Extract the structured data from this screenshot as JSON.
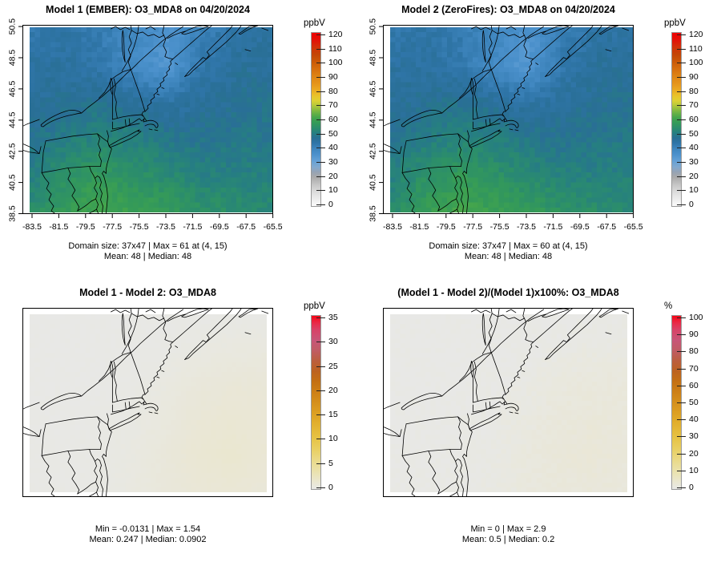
{
  "figure": {
    "background": "#ffffff",
    "text_color": "#000000",
    "description_units": [
      "ppbV",
      "%"
    ]
  },
  "grid": {
    "cols": 47,
    "rows": 37
  },
  "palettes": {
    "conc": [
      [
        0.0,
        "#fbfbfb"
      ],
      [
        0.042,
        "#ececec"
      ],
      [
        0.083,
        "#dbdbdb"
      ],
      [
        0.125,
        "#c5c5c5"
      ],
      [
        0.167,
        "#a9a9a9"
      ],
      [
        0.196,
        "#96a3b4"
      ],
      [
        0.225,
        "#82a9cf"
      ],
      [
        0.263,
        "#62a0d6"
      ],
      [
        0.3,
        "#4a90cb"
      ],
      [
        0.333,
        "#3e85bd"
      ],
      [
        0.363,
        "#2f75a8"
      ],
      [
        0.392,
        "#296f95"
      ],
      [
        0.421,
        "#267e82"
      ],
      [
        0.45,
        "#2b8d6c"
      ],
      [
        0.48,
        "#349a59"
      ],
      [
        0.508,
        "#42a44d"
      ],
      [
        0.533,
        "#63b046"
      ],
      [
        0.558,
        "#8cbc40"
      ],
      [
        0.583,
        "#b8c93a"
      ],
      [
        0.608,
        "#ddd134"
      ],
      [
        0.633,
        "#e9c52b"
      ],
      [
        0.667,
        "#ebac22"
      ],
      [
        0.708,
        "#e5941b"
      ],
      [
        0.75,
        "#de8414"
      ],
      [
        0.792,
        "#d66f0e"
      ],
      [
        0.833,
        "#cb5a08"
      ],
      [
        0.875,
        "#c44605"
      ],
      [
        0.917,
        "#d23209"
      ],
      [
        0.958,
        "#e31208"
      ],
      [
        1.0,
        "#f00000"
      ]
    ],
    "diff": [
      [
        0.0,
        "#e8e8e6"
      ],
      [
        0.04,
        "#eae7d2"
      ],
      [
        0.09,
        "#eae3b4"
      ],
      [
        0.15,
        "#eadc92"
      ],
      [
        0.22,
        "#e9d167"
      ],
      [
        0.3,
        "#e6c242"
      ],
      [
        0.38,
        "#e2af2d"
      ],
      [
        0.46,
        "#da9a20"
      ],
      [
        0.54,
        "#d08518"
      ],
      [
        0.62,
        "#c47013"
      ],
      [
        0.68,
        "#bc6220"
      ],
      [
        0.74,
        "#bb5e3e"
      ],
      [
        0.8,
        "#c05c64"
      ],
      [
        0.86,
        "#c85578"
      ],
      [
        0.92,
        "#d84267"
      ],
      [
        0.96,
        "#e92a47"
      ],
      [
        1.0,
        "#f60616"
      ]
    ]
  },
  "fields": {
    "conc": {
      "scale_max": 120,
      "noise": 1.6,
      "grid": [
        [
          43,
          44,
          42,
          39,
          35,
          41,
          44,
          45
        ],
        [
          45,
          45,
          43,
          38,
          34,
          43,
          46,
          46
        ],
        [
          46,
          47,
          48,
          46,
          44,
          46,
          47,
          48
        ],
        [
          48,
          50,
          52,
          51,
          49,
          48,
          49,
          49
        ],
        [
          51,
          55,
          57,
          55,
          53,
          51,
          51,
          51
        ],
        [
          54,
          58,
          61,
          59,
          58,
          55,
          54,
          53
        ]
      ]
    },
    "diff": {
      "scale_max": 35,
      "noise": 0.07,
      "grid": [
        [
          0.05,
          0.05,
          0.05,
          0.05,
          0.08,
          0.1,
          0.12,
          0.12
        ],
        [
          0.05,
          0.05,
          0.06,
          0.08,
          0.15,
          0.35,
          0.5,
          0.55
        ],
        [
          0.06,
          0.06,
          0.08,
          0.15,
          0.4,
          0.8,
          1.0,
          1.0
        ],
        [
          0.08,
          0.08,
          0.12,
          0.25,
          0.6,
          1.1,
          1.3,
          1.1
        ],
        [
          0.1,
          0.1,
          0.18,
          0.35,
          0.8,
          1.3,
          1.54,
          1.2
        ],
        [
          0.1,
          0.12,
          0.2,
          0.4,
          0.8,
          1.1,
          1.2,
          1.0
        ]
      ]
    },
    "pct": {
      "scale_max": 100,
      "noise": 0.5,
      "grid": [
        [
          0.1,
          0.1,
          0.1,
          0.1,
          0.15,
          0.2,
          0.25,
          0.25
        ],
        [
          0.1,
          0.1,
          0.12,
          0.16,
          0.3,
          0.7,
          1.0,
          1.1
        ],
        [
          0.12,
          0.12,
          0.16,
          0.3,
          0.8,
          1.6,
          2.0,
          2.0
        ],
        [
          0.16,
          0.16,
          0.25,
          0.5,
          1.2,
          2.2,
          2.6,
          2.2
        ],
        [
          0.2,
          0.2,
          0.35,
          0.7,
          1.6,
          2.6,
          2.9,
          2.4
        ],
        [
          0.2,
          0.25,
          0.4,
          0.8,
          1.6,
          2.2,
          2.4,
          2.0
        ]
      ]
    }
  },
  "chart_data": [
    {
      "type": "heatmap",
      "title": "Model 1 (EMBER): O3_MDA8 on 04/20/2024",
      "variable": "O3_MDA8",
      "date": "04/20/2024",
      "colorbar": {
        "label": "ppbV",
        "range": [
          0,
          120
        ],
        "ticks": [
          0,
          10,
          20,
          30,
          40,
          50,
          60,
          70,
          80,
          90,
          100,
          110,
          120
        ],
        "palette": "conc"
      },
      "x_axis": {
        "tick_labels": [
          "-83.5",
          "-81.5",
          "-79.5",
          "-77.5",
          "-75.5",
          "-73.5",
          "-71.5",
          "-69.5",
          "-67.5",
          "-65.5"
        ]
      },
      "y_axis": {
        "tick_labels": [
          "38.5",
          "40.5",
          "42.5",
          "44.5",
          "46.5",
          "48.5",
          "50.5"
        ]
      },
      "stats_line1": "Domain size: 37x47 | Max = 61 at (4, 15)",
      "stats_line2": "Mean: 48 | Median: 48",
      "field": "conc"
    },
    {
      "type": "heatmap",
      "title": "Model 2 (ZeroFires): O3_MDA8 on 04/20/2024",
      "variable": "O3_MDA8",
      "date": "04/20/2024",
      "colorbar": {
        "label": "ppbV",
        "range": [
          0,
          120
        ],
        "ticks": [
          0,
          10,
          20,
          30,
          40,
          50,
          60,
          70,
          80,
          90,
          100,
          110,
          120
        ],
        "palette": "conc"
      },
      "x_axis": {
        "tick_labels": [
          "-83.5",
          "-81.5",
          "-79.5",
          "-77.5",
          "-75.5",
          "-73.5",
          "-71.5",
          "-69.5",
          "-67.5",
          "-65.5"
        ]
      },
      "y_axis": {
        "tick_labels": [
          "38.5",
          "40.5",
          "42.5",
          "44.5",
          "46.5",
          "48.5",
          "50.5"
        ]
      },
      "stats_line1": "Domain size: 37x47 | Max = 60 at (4, 15)",
      "stats_line2": "Mean: 48 | Median: 48",
      "field": "conc"
    },
    {
      "type": "heatmap",
      "title": "Model 1 - Model 2: O3_MDA8",
      "variable": "O3_MDA8",
      "colorbar": {
        "label": "ppbV",
        "range": [
          0,
          35
        ],
        "ticks": [
          0,
          5,
          10,
          15,
          20,
          25,
          30,
          35
        ],
        "palette": "diff"
      },
      "stats_line1": "Min = -0.0131 | Max = 1.54",
      "stats_line2": "Mean: 0.247 | Median: 0.0902",
      "field": "diff"
    },
    {
      "type": "heatmap",
      "title": "(Model 1 - Model 2)/(Model 1)x100%: O3_MDA8",
      "variable": "O3_MDA8",
      "colorbar": {
        "label": "%",
        "range": [
          0,
          100
        ],
        "ticks": [
          0,
          10,
          20,
          30,
          40,
          50,
          60,
          70,
          80,
          90,
          100
        ],
        "palette": "diff"
      },
      "stats_line1": "Min = 0 | Max = 2.9",
      "stats_line2": "Mean: 0.5 | Median: 0.2",
      "field": "pct"
    }
  ]
}
